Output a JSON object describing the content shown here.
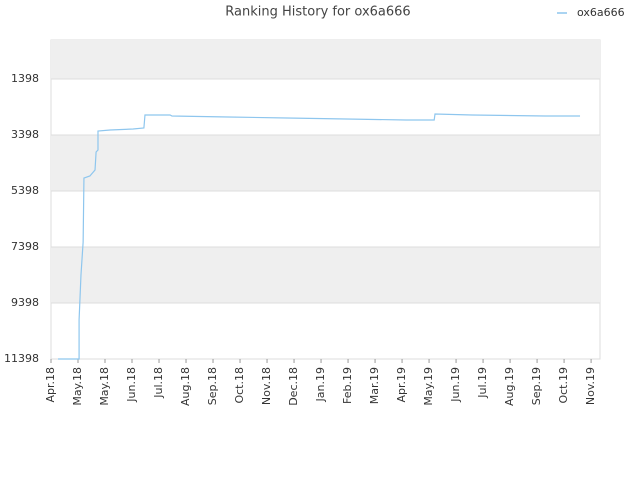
{
  "chart_data": {
    "type": "line",
    "title": "Ranking History for ox6a666",
    "x": [
      0.26,
      1.04,
      1.04,
      1.11,
      1.19,
      1.22,
      1.44,
      1.63,
      1.67,
      1.74,
      1.74,
      2.19,
      3.04,
      3.44,
      3.48,
      4.41,
      4.48,
      6.56,
      8.74,
      10.93,
      13.15,
      14.19,
      14.22,
      15.59,
      18.3,
      19.59
    ],
    "series": [
      {
        "name": "ox6a666",
        "color": "#8ec6ee",
        "values": [
          11398,
          11398,
          9998,
          8398,
          7219,
          4934,
          4862,
          4648,
          4005,
          3934,
          3255,
          3219,
          3184,
          3148,
          2684,
          2684,
          2719,
          2755,
          2791,
          2827,
          2862,
          2862,
          2648,
          2684,
          2719,
          2719
        ]
      }
    ],
    "xlim": [
      0,
      20.33
    ],
    "xticks": [
      {
        "value": 0,
        "label": "Apr.18"
      },
      {
        "value": 1,
        "label": "May.18"
      },
      {
        "value": 2,
        "label": "May.18"
      },
      {
        "value": 3,
        "label": "Jun.18"
      },
      {
        "value": 4,
        "label": "Jul.18"
      },
      {
        "value": 5,
        "label": "Aug.18"
      },
      {
        "value": 6,
        "label": "Sep.18"
      },
      {
        "value": 7,
        "label": "Oct.18"
      },
      {
        "value": 8,
        "label": "Nov.18"
      },
      {
        "value": 9,
        "label": "Dec.18"
      },
      {
        "value": 10,
        "label": "Jan.19"
      },
      {
        "value": 11,
        "label": "Feb.19"
      },
      {
        "value": 12,
        "label": "Mar.19"
      },
      {
        "value": 13,
        "label": "Apr.19"
      },
      {
        "value": 14,
        "label": "May.19"
      },
      {
        "value": 15,
        "label": "Jun.19"
      },
      {
        "value": 16,
        "label": "Jul.19"
      },
      {
        "value": 17,
        "label": "Aug.19"
      },
      {
        "value": 18,
        "label": "Sep.19"
      },
      {
        "value": 19,
        "label": "Oct.19"
      },
      {
        "value": 20,
        "label": "Nov.19"
      }
    ],
    "ylim": [
      11398,
      5
    ],
    "yticks": [
      1398,
      3398,
      5398,
      7398,
      9398,
      11398
    ],
    "grid": true,
    "legend": "top-right"
  }
}
